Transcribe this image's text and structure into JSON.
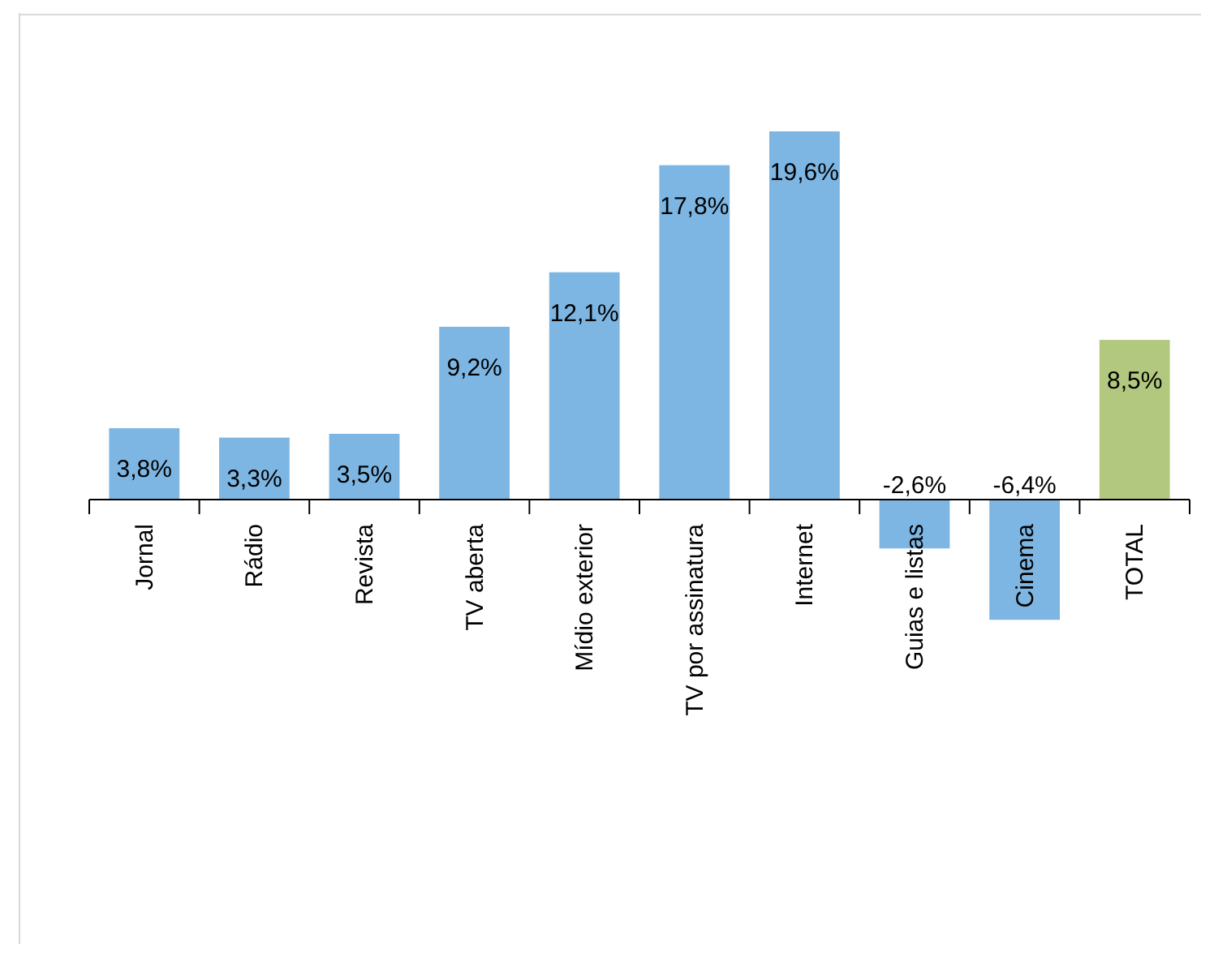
{
  "chart_data": {
    "type": "bar",
    "categories": [
      "Jornal",
      "Rádio",
      "Revista",
      "TV aberta",
      "Mídio exterior",
      "TV por assinatura",
      "Internet",
      "Guias e listas",
      "Cinema",
      "TOTAL"
    ],
    "values": [
      3.8,
      3.3,
      3.5,
      9.2,
      12.1,
      17.8,
      19.6,
      -2.6,
      -6.4,
      8.5
    ],
    "colors": [
      "#7db6e3",
      "#7db6e3",
      "#7db6e3",
      "#7db6e3",
      "#7db6e3",
      "#7db6e3",
      "#7db6e3",
      "#7db6e3",
      "#7db6e3",
      "#b3c87f"
    ],
    "value_labels": [
      "3,8%",
      "3,3%",
      "3,5%",
      "9,2%",
      "12,1%",
      "17,8%",
      "19,6%",
      "-2,6%",
      "-6,4%",
      "8,5%"
    ]
  }
}
